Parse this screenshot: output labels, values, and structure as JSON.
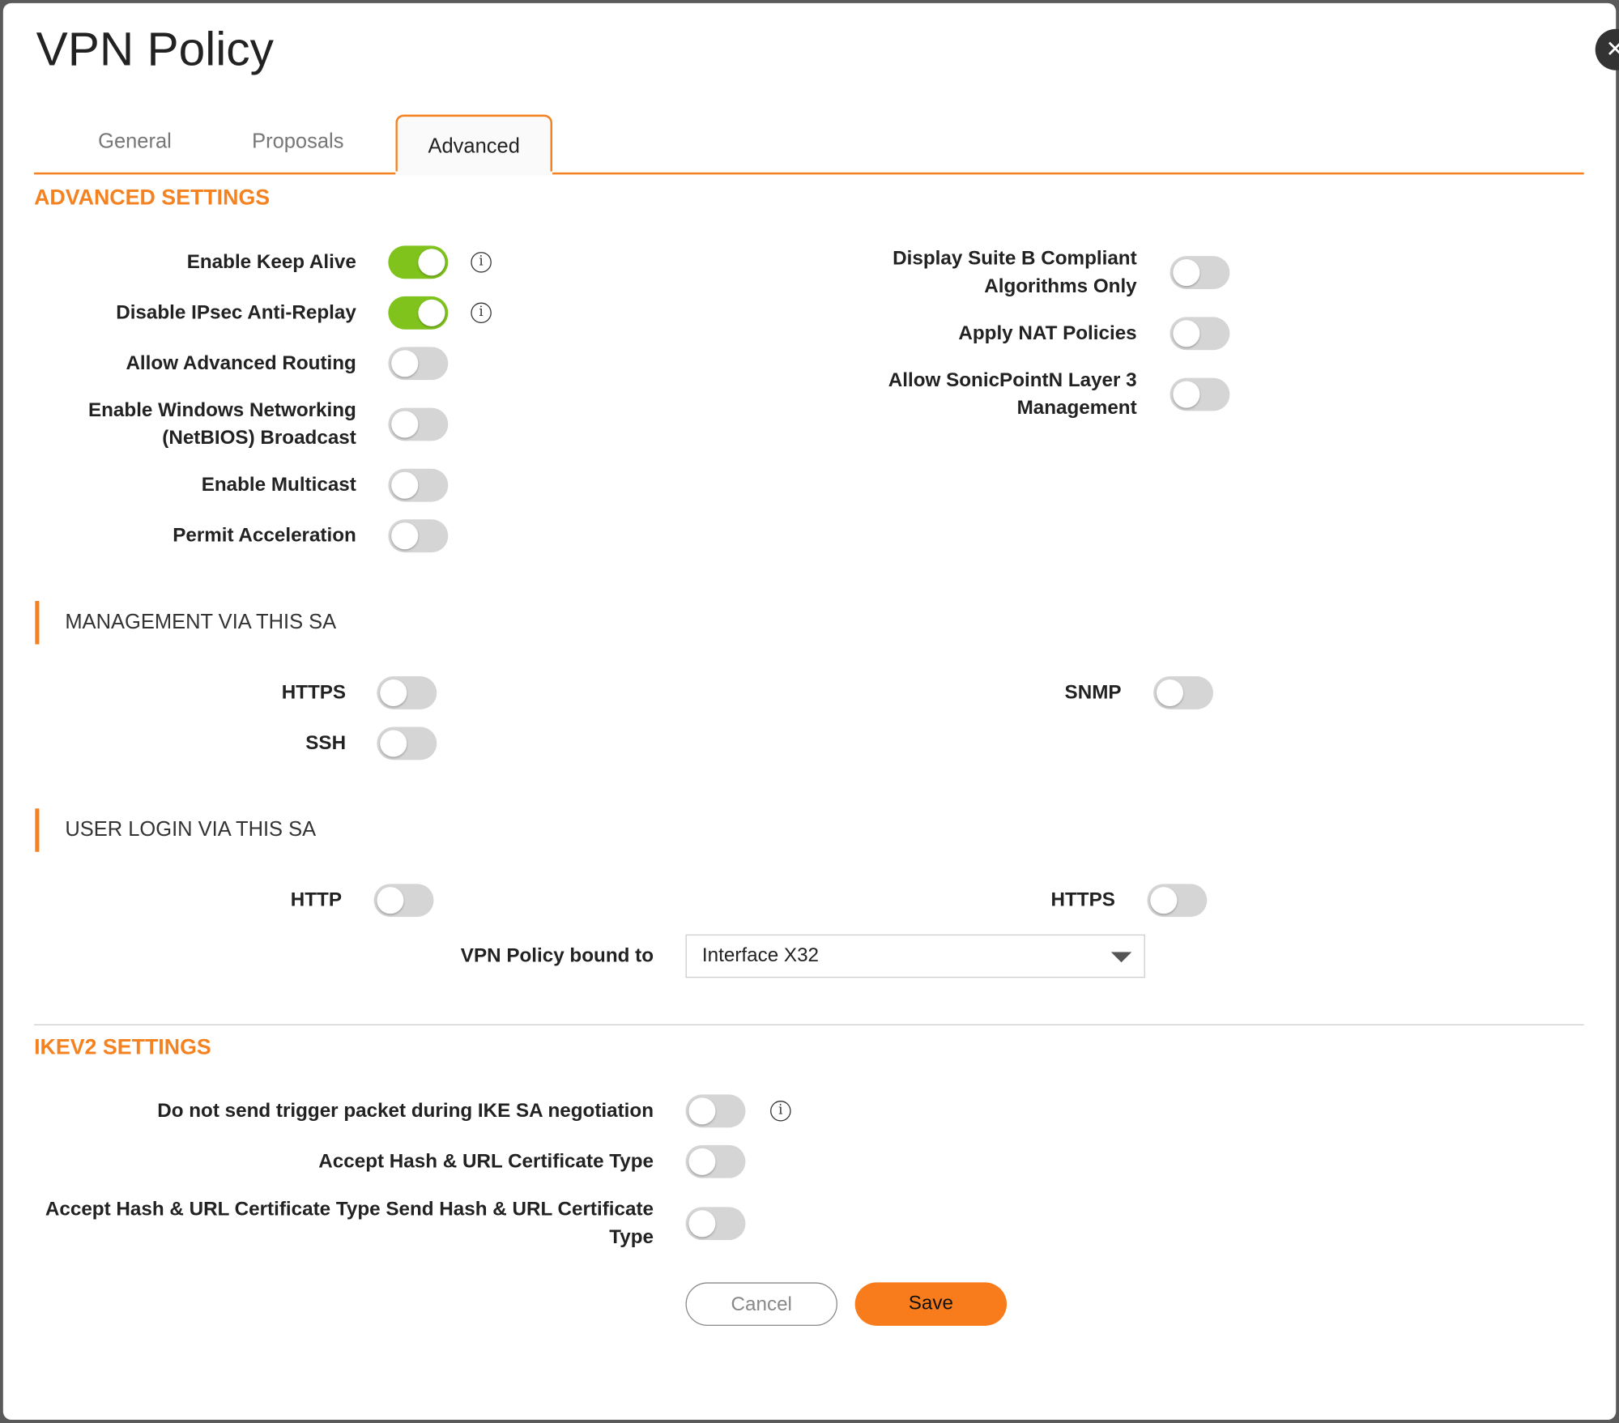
{
  "dialog": {
    "title": "VPN Policy",
    "close_icon": "close-icon"
  },
  "tabs": [
    {
      "label": "General",
      "active": false
    },
    {
      "label": "Proposals",
      "active": false
    },
    {
      "label": "Advanced",
      "active": true
    }
  ],
  "advanced": {
    "heading": "ADVANCED SETTINGS",
    "left": [
      {
        "label": "Enable Keep Alive",
        "on": true,
        "info": true
      },
      {
        "label": "Disable IPsec Anti-Replay",
        "on": true,
        "info": true
      },
      {
        "label": "Allow Advanced Routing",
        "on": false
      },
      {
        "label": "Enable Windows Networking\n(NetBIOS) Broadcast",
        "on": false
      },
      {
        "label": "Enable Multicast",
        "on": false
      },
      {
        "label": "Permit Acceleration",
        "on": false
      }
    ],
    "right": [
      {
        "label": "Display Suite B Compliant\nAlgorithms Only",
        "on": false
      },
      {
        "label": "Apply NAT Policies",
        "on": false
      },
      {
        "label": "Allow SonicPointN Layer 3\nManagement",
        "on": false
      }
    ]
  },
  "management": {
    "heading": "MANAGEMENT VIA THIS SA",
    "https": {
      "label": "HTTPS",
      "on": false
    },
    "ssh": {
      "label": "SSH",
      "on": false
    },
    "snmp": {
      "label": "SNMP",
      "on": false
    }
  },
  "user_login": {
    "heading": "USER LOGIN VIA THIS SA",
    "http": {
      "label": "HTTP",
      "on": false
    },
    "https": {
      "label": "HTTPS",
      "on": false
    }
  },
  "bound": {
    "label": "VPN Policy bound to",
    "value": "Interface X32"
  },
  "ikev2": {
    "heading": "IKEV2 SETTINGS",
    "rows": [
      {
        "label": "Do not send trigger packet during IKE SA negotiation",
        "on": false,
        "info": true
      },
      {
        "label": "Accept Hash & URL Certificate Type",
        "on": false
      },
      {
        "label": "Accept Hash & URL Certificate Type Send Hash & URL Certificate\nType",
        "on": false
      }
    ]
  },
  "buttons": {
    "cancel": "Cancel",
    "save": "Save"
  },
  "colors": {
    "accent": "#f58220",
    "toggle_on": "#7fc31c",
    "toggle_off": "#d5d5d5",
    "save": "#f97c1c"
  }
}
